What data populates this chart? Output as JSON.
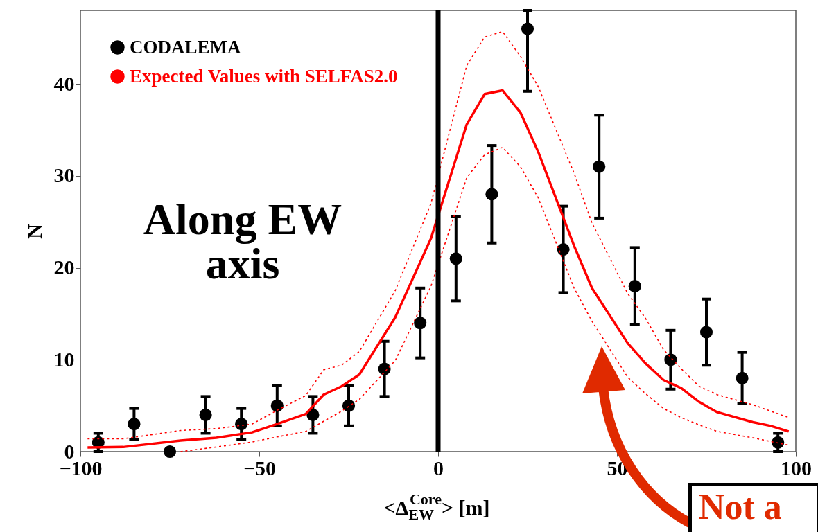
{
  "chart_data": {
    "type": "line",
    "xlabel": "<Δ$_{EW}$$^{Core}$>   [m]",
    "ylabel": "N",
    "xlim": [
      -100,
      100
    ],
    "xticks": [
      -100,
      -50,
      0,
      50,
      100
    ],
    "ylim": [
      0,
      48
    ],
    "yticks": [
      0,
      10,
      20,
      30,
      40
    ],
    "grid": false,
    "legend": "top left",
    "ref_lines": [
      {
        "axis": "x",
        "value": 0,
        "color": "#000000"
      }
    ],
    "annotations": [
      "Along EW axis",
      "Not a"
    ],
    "series": [
      {
        "name": "CODALEMA",
        "color": "#000000",
        "type": "scatter",
        "marker": "circle",
        "x": [
          -95,
          -85,
          -75,
          -65,
          -55,
          -45,
          -35,
          -25,
          -15,
          -5,
          5,
          15,
          25,
          35,
          45,
          55,
          65,
          75,
          85,
          95
        ],
        "values": [
          1,
          3,
          0,
          4,
          3,
          5,
          4,
          5,
          9,
          14,
          21,
          28,
          46,
          22,
          31,
          18,
          10,
          13,
          8,
          1
        ],
        "errors": [
          1,
          1.7,
          null,
          2,
          1.7,
          2.2,
          2,
          2.2,
          3,
          3.8,
          4.6,
          5.3,
          [
            39.2,
            48
          ],
          4.7,
          5.6,
          4.2,
          3.2,
          3.6,
          2.8,
          1
        ]
      },
      {
        "name": "Expected Values with SELFAS2.0",
        "color": "#ff0000",
        "line_style": "solid",
        "x": [
          -98,
          -88,
          -72,
          -62,
          -52,
          -45,
          -37,
          -32,
          -27,
          -22,
          -12,
          -2,
          8,
          13,
          18,
          23,
          28,
          38,
          43,
          53,
          58,
          63,
          68,
          73,
          78,
          88,
          93,
          98
        ],
        "values": [
          0.45,
          0.5,
          1.2,
          1.5,
          2.1,
          3.0,
          4.1,
          6.2,
          7.1,
          8.4,
          14.6,
          23.2,
          35.6,
          38.9,
          39.3,
          36.9,
          32.6,
          22.4,
          17.8,
          11.8,
          9.6,
          7.8,
          6.9,
          5.4,
          4.3,
          3.2,
          2.8,
          2.2
        ]
      },
      {
        "color": "#ff0000",
        "line_style": "dotted",
        "x": [
          -98,
          -88,
          -72,
          -62,
          -52,
          -45,
          -37,
          -32,
          -27,
          -22,
          -12,
          -2,
          8,
          13,
          18,
          23,
          28,
          38,
          43,
          53,
          58,
          63,
          68,
          73,
          78,
          88,
          93,
          98
        ],
        "values": [
          1.4,
          1.4,
          2.3,
          2.5,
          3.0,
          4.5,
          6.1,
          8.9,
          9.4,
          10.9,
          17.5,
          27,
          42.0,
          45.1,
          45.7,
          43.0,
          39.7,
          30.3,
          24.9,
          17.2,
          14.5,
          11.1,
          9.0,
          7.1,
          6.2,
          5.1,
          4.4,
          3.7
        ]
      },
      {
        "color": "#ff0000",
        "line_style": "dotted",
        "x": [
          -72,
          -62,
          -52,
          -45,
          -37,
          -32,
          -27,
          -22,
          -12,
          -2,
          8,
          13,
          18,
          23,
          28,
          38,
          43,
          53,
          58,
          63,
          68,
          73,
          78,
          88,
          93,
          98
        ],
        "values": [
          0,
          0.5,
          1.05,
          1.6,
          2.2,
          3.3,
          4.4,
          5.7,
          9.9,
          18.0,
          29.8,
          32.3,
          33.1,
          31,
          27.6,
          17.8,
          14.2,
          8.1,
          6.3,
          4.7,
          3.7,
          2.9,
          2.2,
          1.5,
          1.1,
          0.7
        ]
      }
    ]
  }
}
